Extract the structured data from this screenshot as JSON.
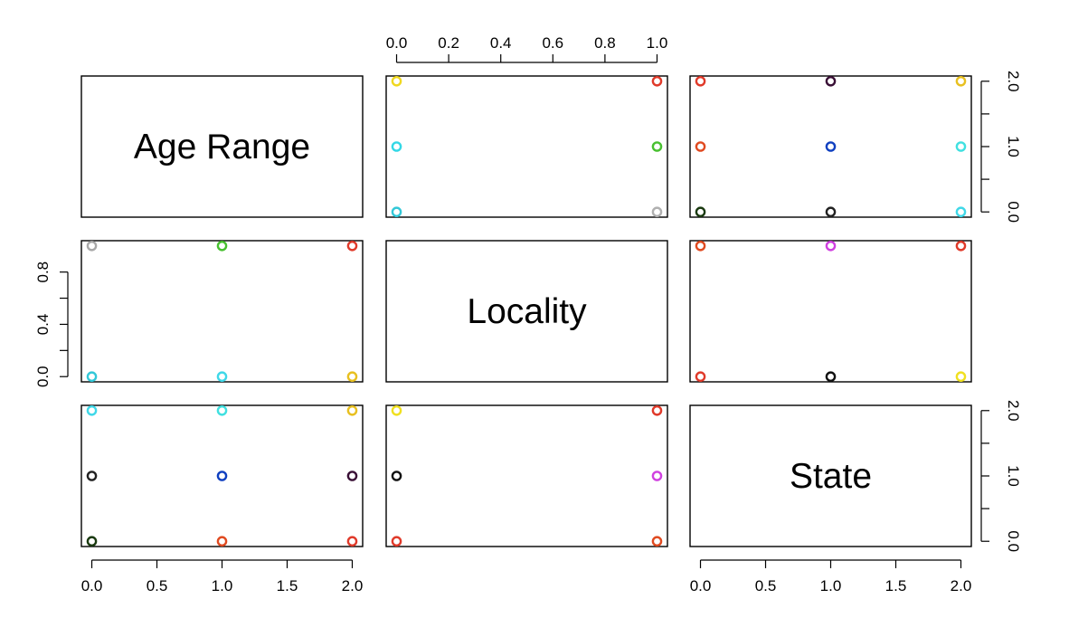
{
  "chart_data": {
    "type": "scatter",
    "kind": "pairs-matrix",
    "variables": [
      "Age Range",
      "Locality",
      "State"
    ],
    "ranges": {
      "Age Range": [
        0,
        2
      ],
      "Locality": [
        0,
        1
      ],
      "State": [
        0,
        2
      ]
    },
    "axes": {
      "bottom": [
        {
          "col": 0,
          "ticks": [
            "0.0",
            "0.5",
            "1.0",
            "1.5",
            "2.0"
          ],
          "values": [
            0,
            0.5,
            1,
            1.5,
            2
          ]
        },
        {
          "col": 2,
          "ticks": [
            "0.0",
            "0.5",
            "1.0",
            "1.5",
            "2.0"
          ],
          "values": [
            0,
            0.5,
            1,
            1.5,
            2
          ]
        }
      ],
      "top": [
        {
          "col": 1,
          "ticks": [
            "0.0",
            "0.2",
            "0.4",
            "0.6",
            "0.8",
            "1.0"
          ],
          "values": [
            0,
            0.2,
            0.4,
            0.6,
            0.8,
            1.0
          ]
        }
      ],
      "left": [
        {
          "row": 1,
          "ticks": [
            "0.0",
            "0.4",
            "0.8"
          ],
          "values": [
            0,
            0.4,
            0.8
          ],
          "minor": [
            0.2,
            0.6
          ]
        }
      ],
      "right": [
        {
          "row": 0,
          "ticks": [
            "0.0",
            "1.0",
            "2.0"
          ],
          "values": [
            0,
            1,
            2
          ],
          "minor": [
            0.5,
            1.5
          ]
        },
        {
          "row": 2,
          "ticks": [
            "0.0",
            "1.0",
            "2.0"
          ],
          "values": [
            0,
            1,
            2
          ],
          "minor": [
            0.5,
            1.5
          ]
        }
      ]
    },
    "panels": [
      {
        "row": 0,
        "col": 1,
        "points": [
          {
            "x": 0,
            "y": 2,
            "color": "#F0D820"
          },
          {
            "x": 1,
            "y": 2,
            "color": "#E03A2A"
          },
          {
            "x": 0,
            "y": 1,
            "color": "#33D8E6"
          },
          {
            "x": 1,
            "y": 1,
            "color": "#48C030"
          },
          {
            "x": 0,
            "y": 0,
            "color": "#33C8D8"
          },
          {
            "x": 1,
            "y": 0,
            "color": "#B0B0B0"
          }
        ]
      },
      {
        "row": 0,
        "col": 2,
        "points": [
          {
            "x": 0,
            "y": 2,
            "color": "#E03A2A"
          },
          {
            "x": 1,
            "y": 2,
            "color": "#3A1036"
          },
          {
            "x": 2,
            "y": 2,
            "color": "#E8C020"
          },
          {
            "x": 0,
            "y": 1,
            "color": "#E04A20"
          },
          {
            "x": 1,
            "y": 1,
            "color": "#1040C0"
          },
          {
            "x": 2,
            "y": 1,
            "color": "#40E0E0"
          },
          {
            "x": 0,
            "y": 0,
            "color": "#1A3A10"
          },
          {
            "x": 1,
            "y": 0,
            "color": "#222222"
          },
          {
            "x": 2,
            "y": 0,
            "color": "#40D8E8"
          }
        ]
      },
      {
        "row": 1,
        "col": 0,
        "points": [
          {
            "x": 0,
            "y": 1,
            "color": "#A8A8A8"
          },
          {
            "x": 1,
            "y": 1,
            "color": "#48C030"
          },
          {
            "x": 2,
            "y": 1,
            "color": "#E03A2A"
          },
          {
            "x": 0,
            "y": 0,
            "color": "#33C8D8"
          },
          {
            "x": 1,
            "y": 0,
            "color": "#40D8E8"
          },
          {
            "x": 2,
            "y": 0,
            "color": "#E8C020"
          }
        ]
      },
      {
        "row": 1,
        "col": 2,
        "points": [
          {
            "x": 0,
            "y": 1,
            "color": "#E04A20"
          },
          {
            "x": 1,
            "y": 1,
            "color": "#D040E0"
          },
          {
            "x": 2,
            "y": 1,
            "color": "#E03A2A"
          },
          {
            "x": 0,
            "y": 0,
            "color": "#E03A2A"
          },
          {
            "x": 1,
            "y": 0,
            "color": "#111111"
          },
          {
            "x": 2,
            "y": 0,
            "color": "#F0E020"
          }
        ]
      },
      {
        "row": 2,
        "col": 0,
        "points": [
          {
            "x": 0,
            "y": 2,
            "color": "#40D8E8"
          },
          {
            "x": 1,
            "y": 2,
            "color": "#40E0E0"
          },
          {
            "x": 2,
            "y": 2,
            "color": "#E8C020"
          },
          {
            "x": 0,
            "y": 1,
            "color": "#222222"
          },
          {
            "x": 1,
            "y": 1,
            "color": "#1040C0"
          },
          {
            "x": 2,
            "y": 1,
            "color": "#3A1036"
          },
          {
            "x": 0,
            "y": 0,
            "color": "#1A3A10"
          },
          {
            "x": 1,
            "y": 0,
            "color": "#E04A20"
          },
          {
            "x": 2,
            "y": 0,
            "color": "#E03A2A"
          }
        ]
      },
      {
        "row": 2,
        "col": 1,
        "points": [
          {
            "x": 0,
            "y": 2,
            "color": "#F0E020"
          },
          {
            "x": 1,
            "y": 2,
            "color": "#E03A2A"
          },
          {
            "x": 0,
            "y": 1,
            "color": "#111111"
          },
          {
            "x": 1,
            "y": 1,
            "color": "#D040E0"
          },
          {
            "x": 0,
            "y": 0,
            "color": "#E03A2A"
          },
          {
            "x": 1,
            "y": 0,
            "color": "#E04A20"
          }
        ]
      }
    ]
  }
}
